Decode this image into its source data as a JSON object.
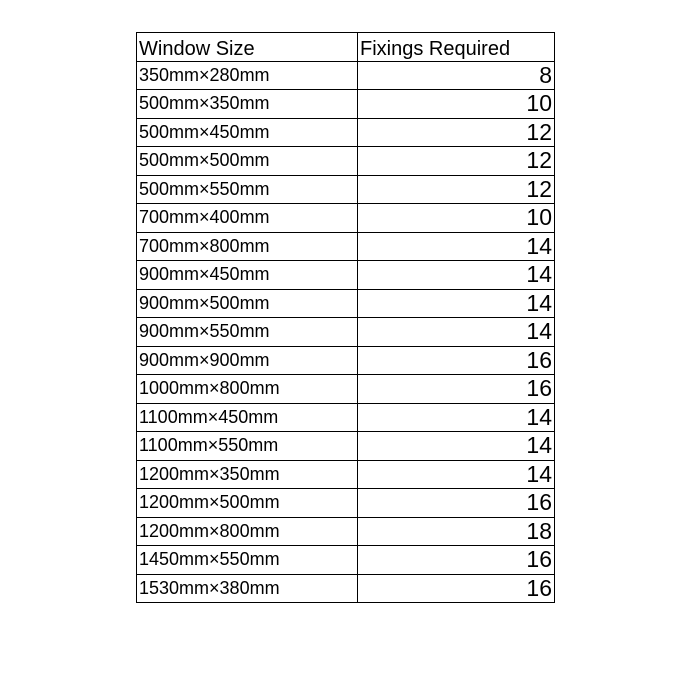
{
  "table": {
    "header": [
      "Window Size",
      "Fixings Required"
    ],
    "rows": [
      [
        "350mm×280mm",
        8
      ],
      [
        "500mm×350mm",
        10
      ],
      [
        "500mm×450mm",
        12
      ],
      [
        "500mm×500mm",
        12
      ],
      [
        "500mm×550mm",
        12
      ],
      [
        "700mm×400mm",
        10
      ],
      [
        "700mm×800mm",
        14
      ],
      [
        "900mm×450mm",
        14
      ],
      [
        "900mm×500mm",
        14
      ],
      [
        "900mm×550mm",
        14
      ],
      [
        "900mm×900mm",
        16
      ],
      [
        "1000mm×800mm",
        16
      ],
      [
        "1100mm×450mm",
        14
      ],
      [
        "1100mm×550mm",
        14
      ],
      [
        "1200mm×350mm",
        14
      ],
      [
        "1200mm×500mm",
        16
      ],
      [
        "1200mm×800mm",
        18
      ],
      [
        "1450mm×550mm",
        16
      ],
      [
        "1530mm×380mm",
        16
      ]
    ]
  }
}
